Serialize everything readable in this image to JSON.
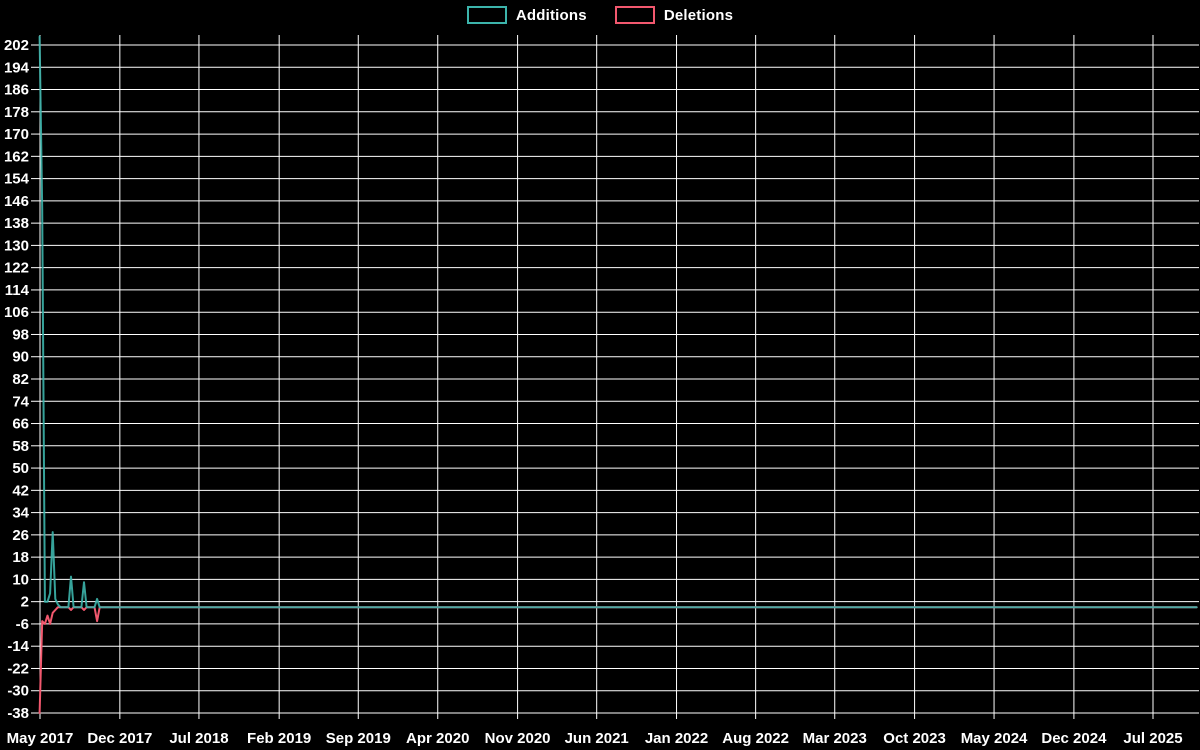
{
  "page": {
    "background": "#000000",
    "grid_color": "#ffffff"
  },
  "legend": {
    "items": [
      {
        "label": "Additions",
        "color": "#3cb4ab"
      },
      {
        "label": "Deletions",
        "color": "#f2586e"
      }
    ]
  },
  "chart_data": {
    "type": "line",
    "title": "",
    "xlabel": "",
    "ylabel": "",
    "legend_position": "top-center",
    "grid": true,
    "x_axis": {
      "kind": "time-weekly",
      "tick_labels": [
        "May 2017",
        "Dec 2017",
        "Jul 2018",
        "Feb 2019",
        "Sep 2019",
        "Apr 2020",
        "Nov 2020",
        "Jun 2021",
        "Jan 2022",
        "Aug 2022",
        "Mar 2023",
        "Oct 2023",
        "May 2024",
        "Dec 2024",
        "Jul 2025"
      ],
      "tick_start": "2017-05-01",
      "tick_interval_months": 7
    },
    "y_axis": {
      "tick_values": [
        202,
        194,
        186,
        178,
        170,
        162,
        154,
        146,
        138,
        130,
        122,
        114,
        106,
        98,
        90,
        82,
        74,
        66,
        58,
        50,
        42,
        34,
        26,
        18,
        10,
        2,
        -6,
        -14,
        -22,
        -30,
        -38
      ],
      "min": -38,
      "max": 205.6
    },
    "series": [
      {
        "name": "Additions",
        "color": "#3cb4ab",
        "points": [
          [
            "2017-04-30",
            205
          ],
          [
            "2017-05-07",
            143
          ],
          [
            "2017-05-14",
            2
          ],
          [
            "2017-05-21",
            2
          ],
          [
            "2017-05-28",
            5
          ],
          [
            "2017-06-04",
            27
          ],
          [
            "2017-06-11",
            3
          ],
          [
            "2017-06-18",
            1
          ],
          [
            "2017-06-25",
            0
          ],
          [
            "2017-07-16",
            0
          ],
          [
            "2017-07-23",
            11
          ],
          [
            "2017-07-30",
            0
          ],
          [
            "2017-08-20",
            0
          ],
          [
            "2017-08-27",
            9
          ],
          [
            "2017-09-03",
            0
          ],
          [
            "2017-09-24",
            0
          ],
          [
            "2017-10-01",
            3
          ],
          [
            "2017-10-08",
            0
          ],
          [
            "2025-10-26",
            0
          ]
        ]
      },
      {
        "name": "Deletions",
        "color": "#f2586e",
        "points": [
          [
            "2017-04-30",
            -38
          ],
          [
            "2017-05-07",
            -5
          ],
          [
            "2017-05-14",
            -6
          ],
          [
            "2017-05-21",
            -3
          ],
          [
            "2017-05-28",
            -6
          ],
          [
            "2017-06-04",
            -2
          ],
          [
            "2017-06-11",
            -1
          ],
          [
            "2017-06-18",
            0
          ],
          [
            "2017-07-16",
            0
          ],
          [
            "2017-07-23",
            -1
          ],
          [
            "2017-07-30",
            0
          ],
          [
            "2017-08-20",
            0
          ],
          [
            "2017-08-27",
            -1
          ],
          [
            "2017-09-03",
            0
          ],
          [
            "2017-09-24",
            0
          ],
          [
            "2017-10-01",
            -5
          ],
          [
            "2017-10-08",
            0
          ],
          [
            "2025-10-26",
            0
          ]
        ]
      }
    ]
  }
}
